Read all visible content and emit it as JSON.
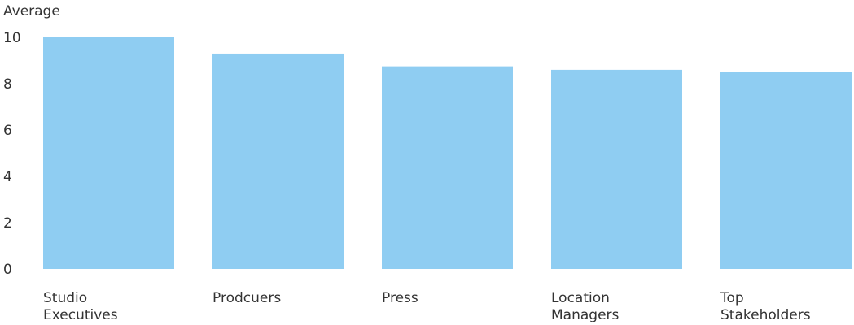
{
  "chart_data": {
    "type": "bar",
    "title": "",
    "ylabel": "Average",
    "xlabel": "",
    "ylim": [
      0,
      10
    ],
    "yticks": [
      0,
      2,
      4,
      6,
      8,
      10
    ],
    "grid": false,
    "bar_color": "#8fcdf2",
    "categories": [
      [
        "Studio",
        "Executives"
      ],
      [
        "Prodcuers"
      ],
      [
        "Press"
      ],
      [
        "Location",
        "Managers"
      ],
      [
        "Top",
        "Stakeholders"
      ]
    ],
    "values": [
      10,
      9.3,
      8.75,
      8.6,
      8.5
    ]
  }
}
